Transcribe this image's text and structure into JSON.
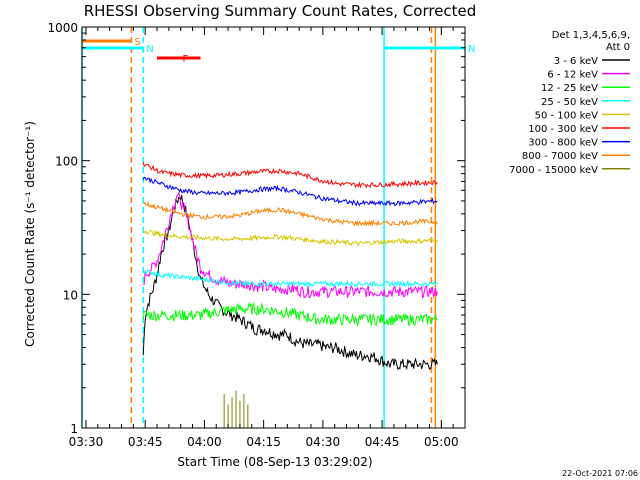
{
  "chart_data": {
    "type": "line",
    "title": "RHESSI Observing Summary Count Rates, Corrected",
    "xlabel": "Start Time (08-Sep-13 03:29:02)",
    "ylabel": "Corrected Count Rate (s⁻¹ detector⁻¹)",
    "x_ticks": [
      "03:30",
      "03:45",
      "04:00",
      "04:15",
      "04:30",
      "04:45",
      "05:00"
    ],
    "x_tick_minutes": [
      1,
      16,
      31,
      46,
      61,
      76,
      91
    ],
    "xlim_minutes": [
      0,
      97
    ],
    "y_scale": "log",
    "ylim": [
      1,
      1000
    ],
    "y_ticks": [
      1,
      10,
      100,
      1000
    ],
    "y_tick_labels": [
      "1",
      "10",
      "100",
      "1000"
    ],
    "legend_header": [
      "Det 1,3,4,5,6,9,",
      "Att 0"
    ],
    "legend_position": "right",
    "series": [
      {
        "name": "3 - 6 keV",
        "color": "#000000",
        "x": [
          15.5,
          16,
          17,
          18,
          19,
          20,
          21,
          22,
          23,
          24,
          25,
          26,
          27,
          28,
          29,
          30,
          32,
          34,
          36,
          38,
          40,
          42,
          44,
          46,
          48,
          50,
          52,
          54,
          56,
          58,
          60,
          62,
          64,
          66,
          68,
          70,
          72,
          74,
          76,
          78,
          80,
          82,
          84,
          86,
          88,
          90
        ],
        "values": [
          3.5,
          7,
          9,
          11,
          14,
          20,
          25,
          30,
          40,
          50,
          55,
          45,
          35,
          25,
          18,
          13,
          10,
          8.5,
          7.5,
          7,
          6.5,
          6,
          5.5,
          5.5,
          5.2,
          5,
          5,
          4.5,
          4.3,
          4.2,
          4.2,
          4,
          4,
          3.8,
          3.6,
          3.5,
          3.5,
          3.4,
          3.2,
          3,
          3,
          3,
          3,
          3,
          3,
          3
        ]
      },
      {
        "name": "6 - 12 keV",
        "color": "#ff00ff",
        "x": [
          15.5,
          16,
          17,
          18,
          19,
          20,
          21,
          22,
          23,
          24,
          25,
          26,
          27,
          28,
          29,
          30,
          32,
          34,
          36,
          38,
          40,
          42,
          44,
          46,
          48,
          50,
          52,
          54,
          56,
          58,
          60,
          62,
          64,
          66,
          68,
          70,
          72,
          74,
          76,
          78,
          80,
          82,
          84,
          86,
          88,
          90
        ],
        "values": [
          12,
          14,
          15,
          16,
          18,
          22,
          28,
          35,
          45,
          55,
          50,
          42,
          34,
          26,
          20,
          16,
          14,
          13,
          12.5,
          12,
          12,
          12,
          11.5,
          11.5,
          11,
          11,
          11,
          11,
          10.5,
          10.5,
          10.5,
          10.5,
          10.5,
          10.5,
          10.5,
          10.5,
          10.5,
          10.5,
          10.5,
          10.5,
          10.5,
          10.5,
          10.5,
          10.5,
          10.5,
          10.5
        ]
      },
      {
        "name": "12 - 25 keV",
        "color": "#00ff00",
        "x": [
          15.5,
          20,
          25,
          30,
          35,
          40,
          45,
          50,
          55,
          60,
          65,
          70,
          75,
          80,
          85,
          90
        ],
        "values": [
          7,
          7,
          7,
          7,
          7.5,
          7.8,
          7.8,
          7.5,
          7,
          6.5,
          6.5,
          6.5,
          6.5,
          6.5,
          6.5,
          6.5
        ]
      },
      {
        "name": "25 - 50 keV",
        "color": "#00ffff",
        "x": [
          15.5,
          20,
          25,
          30,
          35,
          40,
          45,
          50,
          55,
          60,
          65,
          70,
          75,
          80,
          85,
          90
        ],
        "values": [
          15,
          14,
          13.5,
          13,
          12.5,
          12,
          12,
          12,
          12,
          12,
          12,
          12,
          12,
          12,
          12,
          12
        ]
      },
      {
        "name": "50 - 100 keV",
        "color": "#d4c800",
        "x": [
          15.5,
          20,
          25,
          30,
          35,
          40,
          45,
          50,
          55,
          60,
          65,
          70,
          75,
          80,
          85,
          90
        ],
        "values": [
          30,
          28,
          27,
          26.5,
          26,
          26,
          26.5,
          27,
          26,
          25,
          24.5,
          24,
          24.5,
          25,
          25,
          25.5
        ]
      },
      {
        "name": "100 - 300 keV",
        "color": "#ff0000",
        "x": [
          15.5,
          20,
          25,
          30,
          35,
          40,
          45,
          50,
          55,
          60,
          65,
          70,
          75,
          80,
          85,
          90
        ],
        "values": [
          95,
          82,
          78,
          77,
          78,
          80,
          83,
          84,
          80,
          72,
          67,
          66,
          66,
          67,
          68,
          69
        ]
      },
      {
        "name": "300 - 800 keV",
        "color": "#0000ff",
        "x": [
          15.5,
          20,
          25,
          30,
          35,
          40,
          45,
          50,
          55,
          60,
          65,
          70,
          75,
          80,
          85,
          90
        ],
        "values": [
          75,
          67,
          60,
          57,
          57,
          58,
          61,
          62,
          58,
          53,
          50,
          48,
          48,
          48,
          49,
          50
        ]
      },
      {
        "name": "800 - 7000 keV",
        "color": "#ff8000",
        "x": [
          15.5,
          20,
          25,
          30,
          35,
          40,
          45,
          50,
          55,
          60,
          65,
          70,
          75,
          80,
          85,
          90
        ],
        "values": [
          48,
          44,
          40,
          38,
          38,
          39,
          42,
          43,
          40,
          37,
          35,
          34,
          34,
          34,
          35,
          35
        ]
      },
      {
        "name": "7000 - 15000 keV",
        "color": "#808000",
        "x": [
          36,
          37,
          38,
          39,
          40,
          41,
          42
        ],
        "values": [
          1.8,
          1.5,
          1.7,
          1.9,
          1.6,
          1.8,
          1.5
        ]
      }
    ],
    "annotations": {
      "vertical_lines": [
        {
          "x_minute": 0,
          "color": "#00ffff",
          "style": "solid"
        },
        {
          "x_minute": 12.5,
          "color": "#ff8000",
          "style": "dashed"
        },
        {
          "x_minute": 15.5,
          "color": "#00ffff",
          "style": "dashed"
        },
        {
          "x_minute": 76.5,
          "color": "#00ffff",
          "style": "solid"
        },
        {
          "x_minute": 88.5,
          "color": "#ff8000",
          "style": "dashed"
        },
        {
          "x_minute": 89.5,
          "color": "#ff8000",
          "style": "solid"
        }
      ],
      "flag_bars": [
        {
          "label": "S",
          "color": "#ff8000",
          "x_start": 0,
          "x_end": 12.5
        },
        {
          "label": "N",
          "color": "#00ffff",
          "x_start": 0,
          "x_end": 15.5
        },
        {
          "label": "N",
          "color": "#00ffff",
          "x_start": 76.5,
          "x_end": 97
        },
        {
          "label": "F",
          "color": "#ff0000",
          "x_start": 19,
          "x_end": 30
        }
      ]
    }
  },
  "footer_stamp": "22-Oct-2021 07:06"
}
